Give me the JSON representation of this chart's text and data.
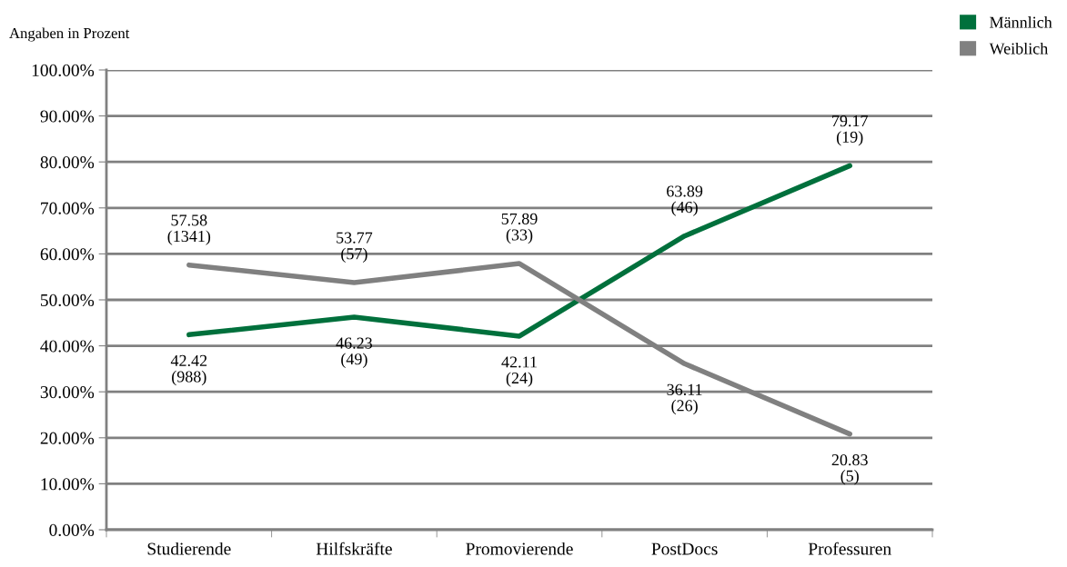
{
  "chart_data": {
    "type": "line",
    "ylabel": "Angaben in Prozent",
    "categories": [
      "Studierende",
      "Hilfskräfte",
      "Promovierende",
      "PostDocs",
      "Professuren"
    ],
    "series": [
      {
        "name": "Männlich",
        "color": "#00703c",
        "values": [
          42.42,
          46.23,
          42.11,
          63.89,
          79.17
        ],
        "value_labels": [
          "42.42\n(988)",
          "46.23\n(49)",
          "42.11\n(24)",
          "63.89\n(46)",
          "79.17\n(19)"
        ]
      },
      {
        "name": "Weiblich",
        "color": "#808080",
        "values": [
          57.58,
          53.77,
          57.89,
          36.11,
          20.83
        ],
        "value_labels": [
          "57.58\n(1341)",
          "53.77\n(57)",
          "57.89\n(33)",
          "36.11\n(26)",
          "20.83\n(5)"
        ]
      }
    ],
    "ylim": [
      0,
      100
    ],
    "yticks": [
      {
        "value": 0,
        "label": "0.00%"
      },
      {
        "value": 10,
        "label": "10.00%"
      },
      {
        "value": 20,
        "label": "20.00%"
      },
      {
        "value": 30,
        "label": "30.00%"
      },
      {
        "value": 40,
        "label": "40.00%"
      },
      {
        "value": 50,
        "label": "50.00%"
      },
      {
        "value": 60,
        "label": "60.00%"
      },
      {
        "value": 70,
        "label": "70.00%"
      },
      {
        "value": 80,
        "label": "80.00%"
      },
      {
        "value": 90,
        "label": "90.00%"
      },
      {
        "value": 100,
        "label": "100.00%"
      }
    ],
    "grid": "y",
    "legend": "top right",
    "marker": "none",
    "line_style": "solid"
  }
}
